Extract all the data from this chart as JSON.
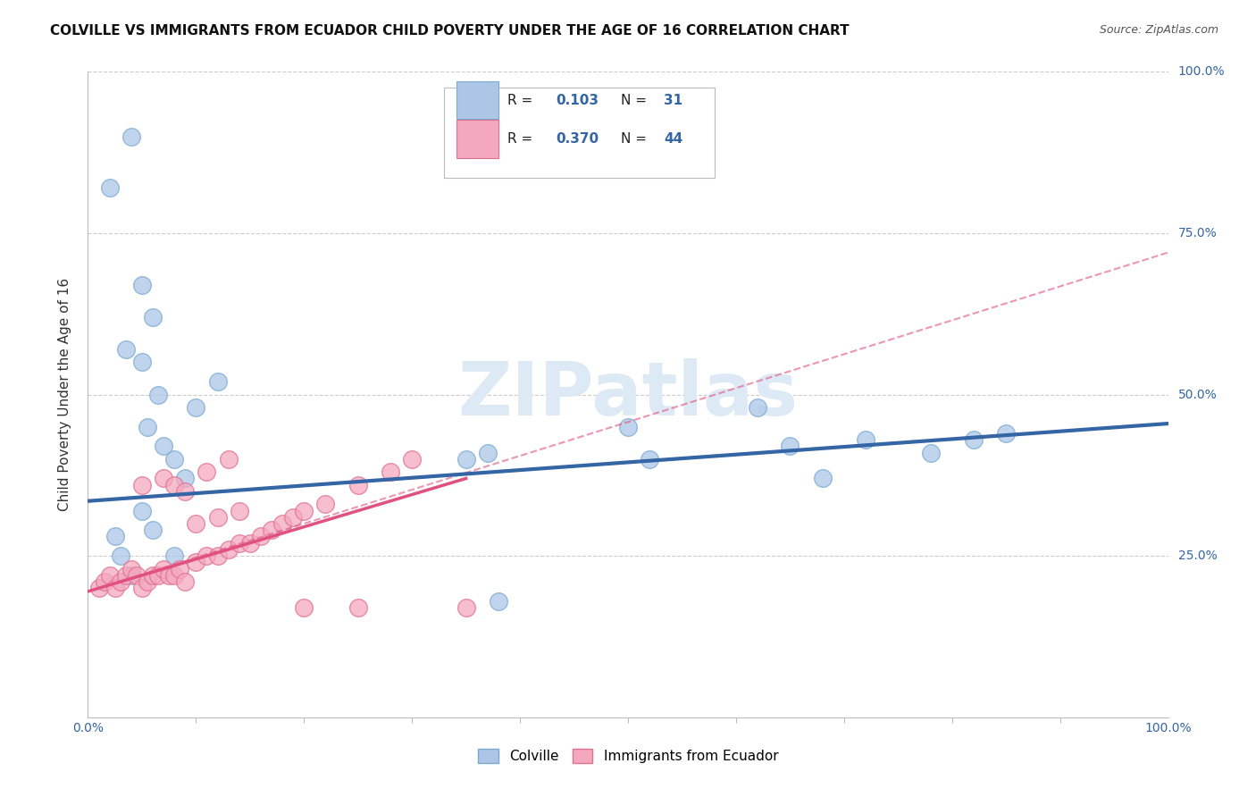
{
  "title": "COLVILLE VS IMMIGRANTS FROM ECUADOR CHILD POVERTY UNDER THE AGE OF 16 CORRELATION CHART",
  "source": "Source: ZipAtlas.com",
  "ylabel": "Child Poverty Under the Age of 16",
  "xlim": [
    0.0,
    1.0
  ],
  "ylim": [
    0.0,
    1.0
  ],
  "legend_entries": [
    {
      "label": "Colville",
      "color": "#adc6e8",
      "edge_color": "#7aaad0",
      "R": 0.103,
      "N": 31
    },
    {
      "label": "Immigrants from Ecuador",
      "color": "#f4a8be",
      "edge_color": "#e07090",
      "R": 0.37,
      "N": 44
    }
  ],
  "watermark": "ZIPatlas",
  "blue_color": "#3465a4",
  "pink_color": "#e05080",
  "colville_scatter_x": [
    0.02,
    0.04,
    0.05,
    0.06,
    0.035,
    0.05,
    0.055,
    0.065,
    0.07,
    0.08,
    0.09,
    0.1,
    0.12,
    0.05,
    0.06,
    0.08,
    0.35,
    0.37,
    0.5,
    0.52,
    0.62,
    0.65,
    0.68,
    0.72,
    0.78,
    0.82,
    0.85,
    0.025,
    0.03,
    0.04,
    0.38
  ],
  "colville_scatter_y": [
    0.82,
    0.9,
    0.67,
    0.62,
    0.57,
    0.55,
    0.45,
    0.5,
    0.42,
    0.4,
    0.37,
    0.48,
    0.52,
    0.32,
    0.29,
    0.25,
    0.4,
    0.41,
    0.45,
    0.4,
    0.48,
    0.42,
    0.37,
    0.43,
    0.41,
    0.43,
    0.44,
    0.28,
    0.25,
    0.22,
    0.18
  ],
  "ecuador_scatter_x": [
    0.01,
    0.015,
    0.02,
    0.025,
    0.03,
    0.035,
    0.04,
    0.045,
    0.05,
    0.055,
    0.06,
    0.065,
    0.07,
    0.075,
    0.08,
    0.085,
    0.09,
    0.1,
    0.11,
    0.12,
    0.13,
    0.14,
    0.15,
    0.16,
    0.17,
    0.18,
    0.19,
    0.2,
    0.22,
    0.25,
    0.28,
    0.3,
    0.35,
    0.1,
    0.12,
    0.14,
    0.05,
    0.07,
    0.08,
    0.09,
    0.11,
    0.13,
    0.2,
    0.25
  ],
  "ecuador_scatter_y": [
    0.2,
    0.21,
    0.22,
    0.2,
    0.21,
    0.22,
    0.23,
    0.22,
    0.2,
    0.21,
    0.22,
    0.22,
    0.23,
    0.22,
    0.22,
    0.23,
    0.21,
    0.24,
    0.25,
    0.25,
    0.26,
    0.27,
    0.27,
    0.28,
    0.29,
    0.3,
    0.31,
    0.32,
    0.33,
    0.36,
    0.38,
    0.4,
    0.17,
    0.3,
    0.31,
    0.32,
    0.36,
    0.37,
    0.36,
    0.35,
    0.38,
    0.4,
    0.17,
    0.17
  ],
  "title_fontsize": 11,
  "axis_label_fontsize": 11,
  "tick_fontsize": 10,
  "background_color": "#ffffff",
  "grid_color": "#cccccc",
  "watermark_color": "#ddeaf5",
  "trendline_blue_start_x": 0.0,
  "trendline_blue_start_y": 0.335,
  "trendline_blue_end_x": 1.0,
  "trendline_blue_end_y": 0.455,
  "trendline_pink_solid_start_x": 0.0,
  "trendline_pink_solid_start_y": 0.195,
  "trendline_pink_solid_end_x": 0.35,
  "trendline_pink_solid_end_y": 0.37,
  "trendline_pink_dashed_start_x": 0.0,
  "trendline_pink_dashed_start_y": 0.195,
  "trendline_pink_dashed_end_x": 1.0,
  "trendline_pink_dashed_end_y": 0.72
}
